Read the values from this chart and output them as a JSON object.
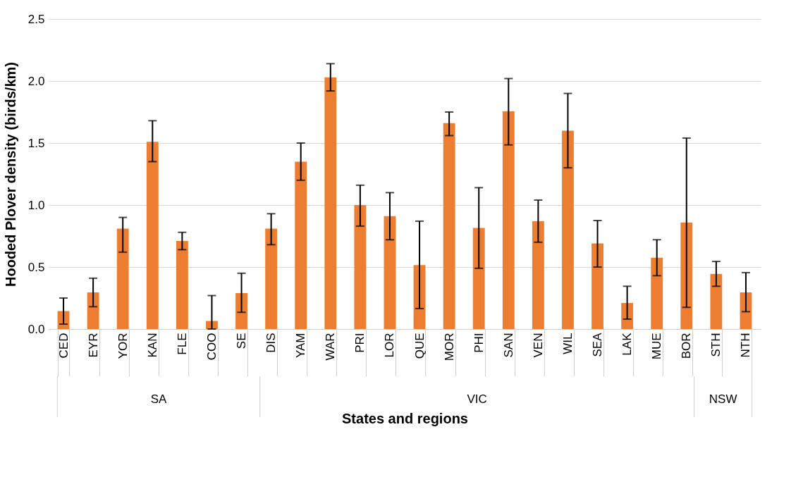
{
  "chart_data": {
    "type": "bar",
    "xlabel": "States and regions",
    "ylabel": "Hooded Plover density (birds/km)",
    "categories": [
      "CED",
      "EYR",
      "YOR",
      "KAN",
      "FLE",
      "COO",
      "SE",
      "DIS",
      "YAM",
      "WAR",
      "PRI",
      "LOR",
      "QUE",
      "MOR",
      "PHI",
      "SAN",
      "VEN",
      "WIL",
      "SEA",
      "LAK",
      "MUE",
      "BOR",
      "STH",
      "NTH"
    ],
    "values": [
      0.145,
      0.295,
      0.81,
      1.51,
      0.71,
      0.065,
      0.29,
      0.81,
      1.35,
      2.03,
      1.0,
      0.91,
      0.515,
      1.66,
      0.815,
      1.755,
      0.87,
      1.6,
      0.69,
      0.21,
      0.575,
      0.86,
      0.445,
      0.295
    ],
    "errors": [
      [
        0.04,
        0.25
      ],
      [
        0.18,
        0.41
      ],
      [
        0.62,
        0.9
      ],
      [
        1.35,
        1.68
      ],
      [
        0.64,
        0.78
      ],
      [
        0,
        0.27
      ],
      [
        0.135,
        0.45
      ],
      [
        0.68,
        0.93
      ],
      [
        1.2,
        1.5
      ],
      [
        1.92,
        2.14
      ],
      [
        0.83,
        1.16
      ],
      [
        0.72,
        1.1
      ],
      [
        0.165,
        0.87
      ],
      [
        1.56,
        1.75
      ],
      [
        0.49,
        1.14
      ],
      [
        1.485,
        2.02
      ],
      [
        0.7,
        1.04
      ],
      [
        1.3,
        1.9
      ],
      [
        0.5,
        0.875
      ],
      [
        0.08,
        0.345
      ],
      [
        0.43,
        0.72
      ],
      [
        0.175,
        1.54
      ],
      [
        0.345,
        0.545
      ],
      [
        0.14,
        0.455
      ]
    ],
    "color": "#ed7d31",
    "ylim": [
      0,
      2.5
    ],
    "yticks": [
      {
        "value": 0,
        "label": "0.0"
      },
      {
        "value": 0.5,
        "label": "0.5"
      },
      {
        "value": 1,
        "label": "1.0"
      },
      {
        "value": 1.5,
        "label": "1.5"
      },
      {
        "value": 2,
        "label": "2.0"
      },
      {
        "value": 2.5,
        "label": "2.5"
      }
    ],
    "grid": "y",
    "annotations": [
      "SA",
      "VIC",
      "NSW"
    ]
  }
}
